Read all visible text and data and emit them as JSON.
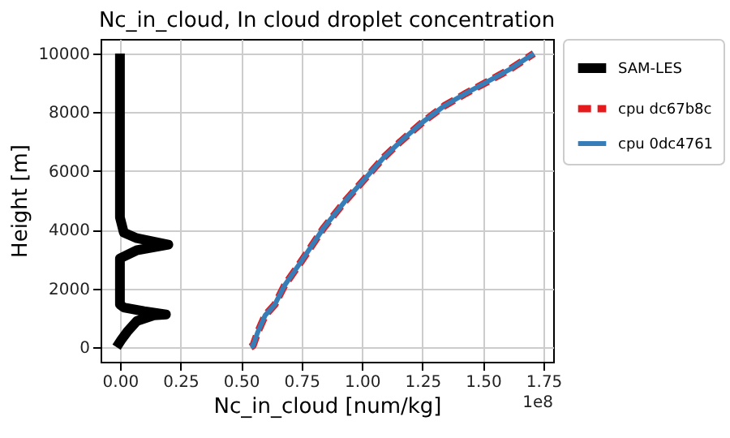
{
  "chart_data": {
    "type": "line",
    "title": "Nc_in_cloud, In cloud droplet concentration",
    "xlabel": "Nc_in_cloud [num/kg]",
    "ylabel": "Height [m]",
    "annotations": [
      "1e8"
    ],
    "xlim": [
      -0.08,
      1.79
    ],
    "xticks": [
      {
        "value": 0,
        "label": "0.00"
      },
      0.25,
      {
        "value": 0.5,
        "label": "0.50"
      },
      0.75,
      {
        "value": 1,
        "label": "1.00"
      },
      1.25,
      {
        "value": 1.5,
        "label": "1.50"
      },
      1.75
    ],
    "ylim": [
      -500,
      10500
    ],
    "yticks": [
      0,
      2000,
      4000,
      6000,
      8000,
      10000
    ],
    "grid": true,
    "legend": "right",
    "series": [
      {
        "name": "SAM-LES",
        "color": "#000000",
        "line_style": "solid",
        "x": [
          -0.014,
          0.005,
          0.03,
          0.07,
          0.14,
          0.19,
          0.1,
          0.016,
          0,
          0,
          0.07,
          0.2,
          0.07,
          0.016,
          0,
          0
        ],
        "values": [
          0,
          240,
          520,
          890,
          1080,
          1110,
          1220,
          1350,
          1450,
          3020,
          3300,
          3490,
          3710,
          3900,
          4420,
          10000
        ]
      },
      {
        "name": "cpu dc67b8c",
        "color": "#e41a1c",
        "line_style": "dashed",
        "x": [
          0.54,
          0.55,
          0.57,
          0.6,
          0.64,
          0.68,
          0.75,
          0.84,
          0.93,
          1.0,
          1.09,
          1.16,
          1.25,
          1.34,
          1.43,
          1.52,
          1.61,
          1.71
        ],
        "values": [
          0,
          50,
          520,
          1080,
          1450,
          2100,
          2930,
          4040,
          4970,
          5620,
          6460,
          7010,
          7660,
          8220,
          8650,
          9050,
          9460,
          10000
        ]
      },
      {
        "name": "cpu 0dc4761",
        "color": "#377eb8",
        "line_style": "solid",
        "x": [
          0.54,
          0.55,
          0.57,
          0.6,
          0.64,
          0.68,
          0.75,
          0.84,
          0.93,
          1.0,
          1.09,
          1.16,
          1.25,
          1.34,
          1.43,
          1.52,
          1.61,
          1.71
        ],
        "values": [
          0,
          50,
          520,
          1080,
          1450,
          2100,
          2930,
          4040,
          4970,
          5620,
          6460,
          7010,
          7660,
          8220,
          8650,
          9050,
          9460,
          10000
        ]
      }
    ]
  }
}
